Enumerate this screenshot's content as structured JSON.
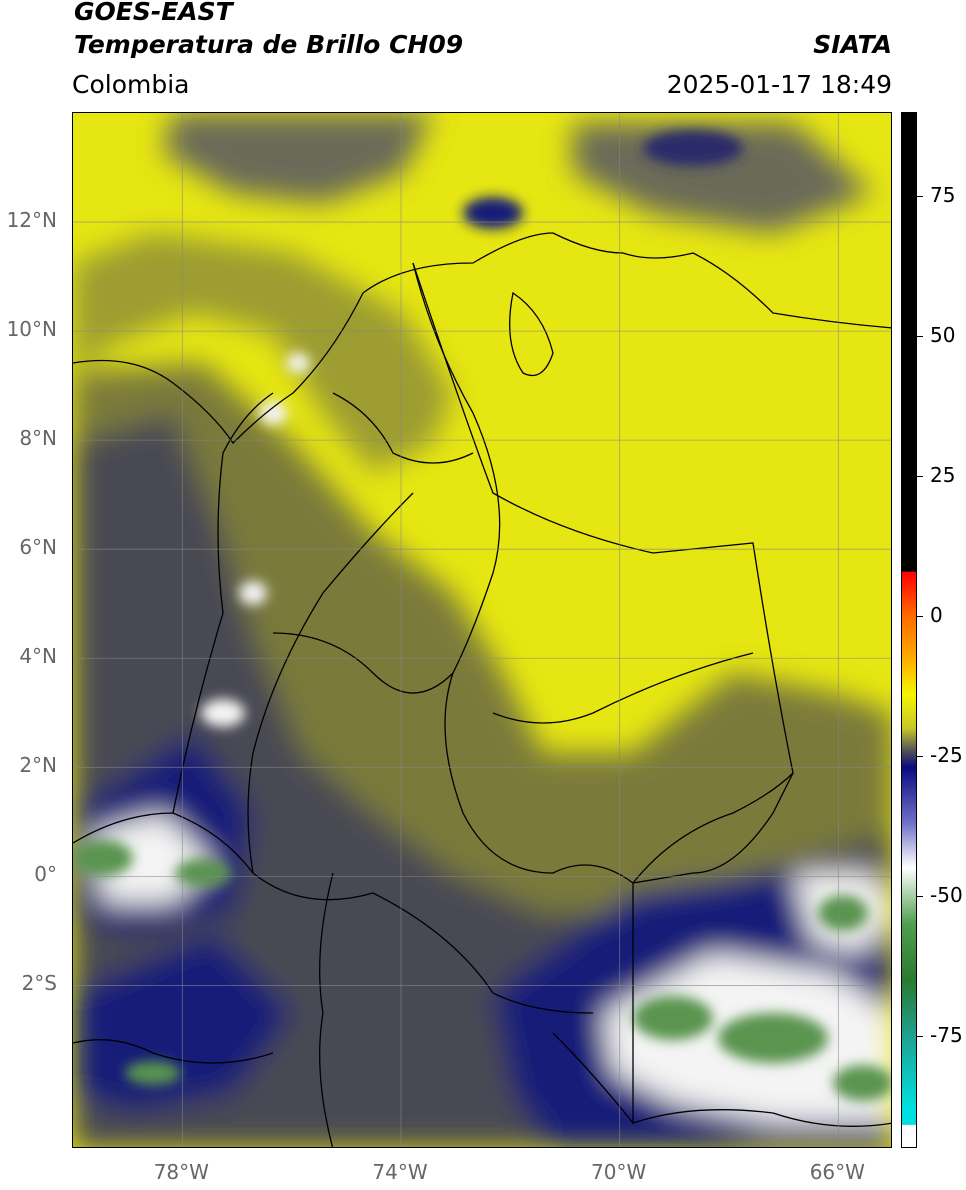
{
  "header": {
    "satellite": "GOES-EAST",
    "product": "Temperatura de Brillo CH09",
    "region": "Colombia",
    "org": "SIATA",
    "datetime": "2025-01-17 18:49"
  },
  "map": {
    "lon_range": [
      -80,
      -65
    ],
    "lat_range": [
      -5,
      14
    ],
    "lat_labels": [
      {
        "value": 12,
        "label": "12°N"
      },
      {
        "value": 10,
        "label": "10°N"
      },
      {
        "value": 8,
        "label": "8°N"
      },
      {
        "value": 6,
        "label": "6°N"
      },
      {
        "value": 4,
        "label": "4°N"
      },
      {
        "value": 2,
        "label": "2°N"
      },
      {
        "value": 0,
        "label": "0°"
      },
      {
        "value": -2,
        "label": "2°S"
      }
    ],
    "lon_labels": [
      {
        "value": -78,
        "label": "78°W"
      },
      {
        "value": -74,
        "label": "74°W"
      },
      {
        "value": -70,
        "label": "70°W"
      },
      {
        "value": -66,
        "label": "66°W"
      }
    ],
    "grid": true,
    "colors": {
      "yellow": "#e6e612",
      "olive": "#7a7a3a",
      "gray": "#4a4a52",
      "navy": "#141a78",
      "white": "#f4f4f4",
      "green": "#5a9450"
    }
  },
  "colorbar": {
    "range": [
      -95,
      90
    ],
    "ticks": [
      {
        "value": 75,
        "label": "75"
      },
      {
        "value": 50,
        "label": "50"
      },
      {
        "value": 25,
        "label": "25"
      },
      {
        "value": 0,
        "label": "0"
      },
      {
        "value": -25,
        "label": "-25"
      },
      {
        "value": -50,
        "label": "-50"
      },
      {
        "value": -75,
        "label": "-75"
      }
    ],
    "stops": [
      {
        "value": 90,
        "color": "#000000"
      },
      {
        "value": 8,
        "color": "#000000"
      },
      {
        "value": 7.9,
        "color": "#ff0000"
      },
      {
        "value": 0,
        "color": "#ff6a00"
      },
      {
        "value": -8,
        "color": "#ffb000"
      },
      {
        "value": -14,
        "color": "#f5f500"
      },
      {
        "value": -20,
        "color": "#c8c828"
      },
      {
        "value": -24,
        "color": "#555555"
      },
      {
        "value": -27,
        "color": "#0a0a80"
      },
      {
        "value": -37,
        "color": "#7070c8"
      },
      {
        "value": -45,
        "color": "#ffffff"
      },
      {
        "value": -55,
        "color": "#50a050"
      },
      {
        "value": -65,
        "color": "#2a7a30"
      },
      {
        "value": -75,
        "color": "#20a090"
      },
      {
        "value": -88,
        "color": "#00e0e0"
      },
      {
        "value": -91,
        "color": "#00e0e0"
      },
      {
        "value": -91.1,
        "color": "#ffffff"
      },
      {
        "value": -95,
        "color": "#ffffff"
      }
    ]
  }
}
